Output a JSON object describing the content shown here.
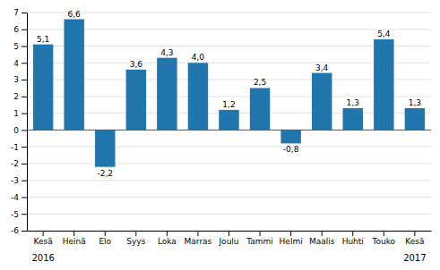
{
  "chart_data": {
    "type": "bar",
    "categories": [
      "Kesä",
      "Heinä",
      "Elo",
      "Syys",
      "Loka",
      "Marras",
      "Joulu",
      "Tammi",
      "Helmi",
      "Maalis",
      "Huhti",
      "Touko",
      "Kesä"
    ],
    "values": [
      5.1,
      6.6,
      -2.2,
      3.6,
      4.3,
      4.0,
      1.2,
      2.5,
      -0.8,
      3.4,
      1.3,
      5.4,
      1.3
    ],
    "value_labels": [
      "5,1",
      "6,6",
      "-2,2",
      "3,6",
      "4,3",
      "4,0",
      "1,2",
      "2,5",
      "-0,8",
      "3,4",
      "1,3",
      "5,4",
      "1,3"
    ],
    "color": "#2176AE",
    "ylim": [
      -6,
      7
    ],
    "yticks": [
      -6,
      -5,
      -4,
      -3,
      -2,
      -1,
      0,
      1,
      2,
      3,
      4,
      5,
      6,
      7
    ],
    "grid": true,
    "data_labels": true,
    "annotations": [
      {
        "text": "2016"
      },
      {
        "text": "2017"
      }
    ]
  }
}
